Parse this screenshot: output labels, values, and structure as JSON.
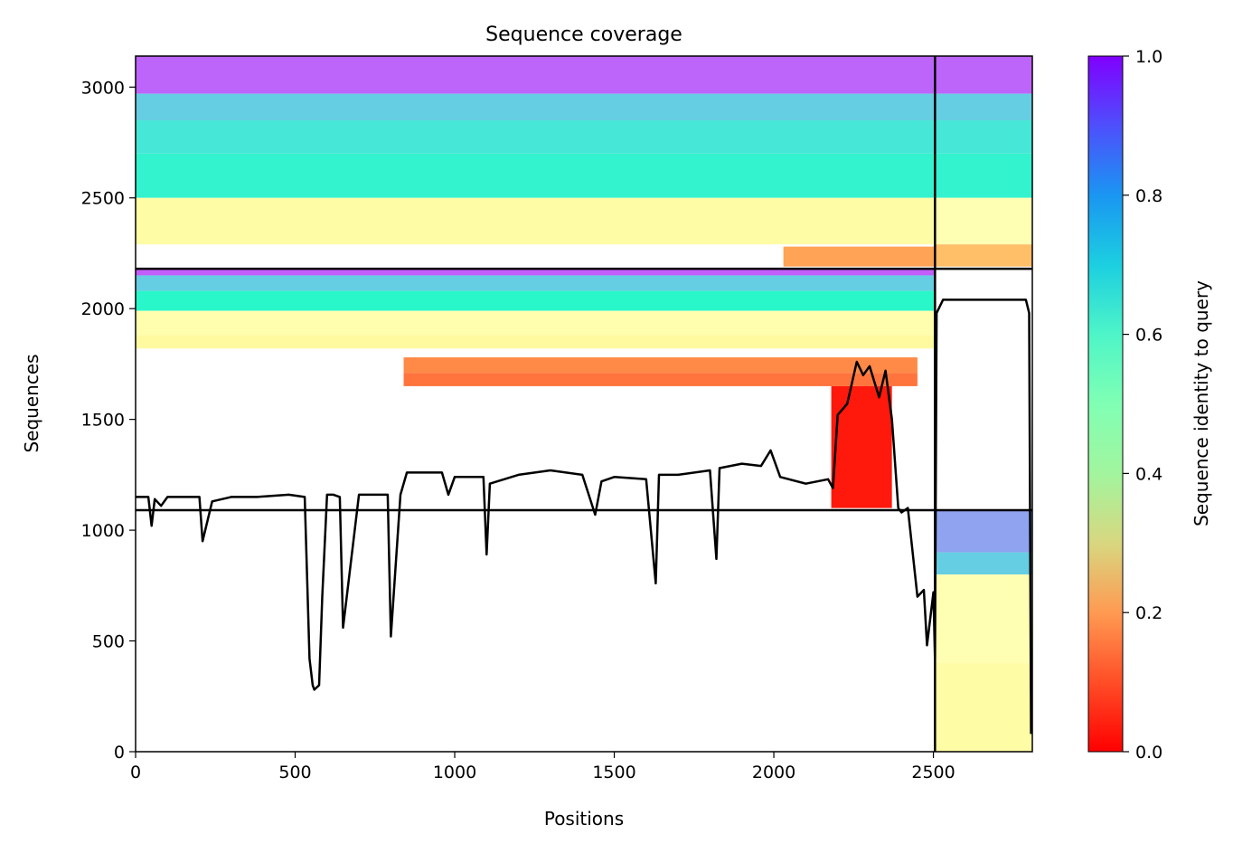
{
  "chart_data": {
    "type": "heatmap",
    "title": "Sequence coverage",
    "xlabel": "Positions",
    "ylabel": "Sequences",
    "xlim": [
      0,
      2810
    ],
    "ylim": [
      0,
      3140
    ],
    "xticks": [
      0,
      500,
      1000,
      1500,
      2000,
      2500
    ],
    "yticks": [
      0,
      500,
      1000,
      1500,
      2000,
      2500,
      3000
    ],
    "grid": false,
    "chain_boundaries_x": [
      2505
    ],
    "block_boundaries_y": [
      1090,
      2180
    ],
    "colorbar": {
      "label": "Sequence identity to query",
      "range": [
        0.0,
        1.0
      ],
      "ticks": [
        0.0,
        0.2,
        0.4,
        0.6,
        0.8,
        1.0
      ],
      "colormap": "rainbow_r"
    },
    "blocks": [
      {
        "name": "block-1",
        "x_range": [
          2505,
          2810
        ],
        "y_range": [
          0,
          1090
        ],
        "bands": [
          {
            "y": [
              0,
              400
            ],
            "identity": 0.45
          },
          {
            "y": [
              400,
              800
            ],
            "identity": 0.5
          },
          {
            "y": [
              800,
              900
            ],
            "identity": 0.7
          },
          {
            "y": [
              900,
              1090
            ],
            "identity": 0.78
          }
        ]
      },
      {
        "name": "block-2",
        "bands": [
          {
            "x": [
              0,
              2505
            ],
            "y": [
              2150,
              2180
            ],
            "identity": 0.88
          },
          {
            "x": [
              0,
              2505
            ],
            "y": [
              2080,
              2150
            ],
            "identity": 0.7
          },
          {
            "x": [
              0,
              2505
            ],
            "y": [
              1990,
              2080
            ],
            "identity": 0.58
          },
          {
            "x": [
              0,
              2505
            ],
            "y": [
              1880,
              1990
            ],
            "identity": 0.48
          },
          {
            "x": [
              0,
              2505
            ],
            "y": [
              1820,
              1880
            ],
            "identity": 0.43
          },
          {
            "x": [
              840,
              2450
            ],
            "y": [
              1710,
              1780
            ],
            "identity": 0.18
          },
          {
            "x": [
              840,
              2450
            ],
            "y": [
              1650,
              1710
            ],
            "identity": 0.15
          },
          {
            "x": [
              2180,
              2370
            ],
            "y": [
              1100,
              1650
            ],
            "identity": 0.03
          }
        ]
      },
      {
        "name": "block-3",
        "bands": [
          {
            "x": [
              0,
              2810
            ],
            "y": [
              2970,
              3140
            ],
            "identity": 0.87
          },
          {
            "x": [
              0,
              2810
            ],
            "y": [
              2850,
              2970
            ],
            "identity": 0.7
          },
          {
            "x": [
              0,
              2810
            ],
            "y": [
              2700,
              2850
            ],
            "identity": 0.64
          },
          {
            "x": [
              0,
              2810
            ],
            "y": [
              2500,
              2700
            ],
            "identity": 0.6
          },
          {
            "x": [
              0,
              2505
            ],
            "y": [
              2290,
              2500
            ],
            "identity": 0.45
          },
          {
            "x": [
              2505,
              2810
            ],
            "y": [
              2290,
              2500
            ],
            "identity": 0.5
          },
          {
            "x": [
              2030,
              2505
            ],
            "y": [
              2190,
              2280
            ],
            "identity": 0.22
          },
          {
            "x": [
              2505,
              2810
            ],
            "y": [
              2190,
              2290
            ],
            "identity": 0.27
          }
        ]
      }
    ],
    "coverage_line": {
      "name": "coverage",
      "x": [
        0,
        40,
        50,
        60,
        80,
        100,
        200,
        210,
        240,
        300,
        380,
        480,
        530,
        545,
        555,
        560,
        575,
        585,
        600,
        620,
        640,
        650,
        700,
        790,
        800,
        830,
        850,
        960,
        980,
        1000,
        1090,
        1100,
        1110,
        1200,
        1300,
        1400,
        1440,
        1460,
        1500,
        1600,
        1630,
        1640,
        1700,
        1800,
        1820,
        1830,
        1900,
        1960,
        1990,
        2020,
        2100,
        2170,
        2185,
        2200,
        2230,
        2260,
        2280,
        2300,
        2330,
        2350,
        2370,
        2390,
        2400,
        2420,
        2450,
        2470,
        2480,
        2500,
        2505,
        2510,
        2530,
        2600,
        2700,
        2760,
        2790,
        2800,
        2806
      ],
      "y": [
        1150,
        1150,
        1020,
        1140,
        1110,
        1150,
        1150,
        950,
        1130,
        1150,
        1150,
        1160,
        1150,
        420,
        300,
        280,
        300,
        700,
        1160,
        1160,
        1150,
        560,
        1160,
        1160,
        520,
        1160,
        1260,
        1260,
        1160,
        1240,
        1240,
        890,
        1210,
        1250,
        1270,
        1250,
        1070,
        1220,
        1240,
        1230,
        760,
        1250,
        1250,
        1270,
        870,
        1280,
        1300,
        1290,
        1360,
        1240,
        1210,
        1230,
        1190,
        1520,
        1570,
        1760,
        1700,
        1740,
        1600,
        1720,
        1500,
        1100,
        1080,
        1100,
        700,
        730,
        480,
        720,
        420,
        1980,
        2040,
        2040,
        2040,
        2040,
        2040,
        1980,
        80
      ]
    }
  }
}
